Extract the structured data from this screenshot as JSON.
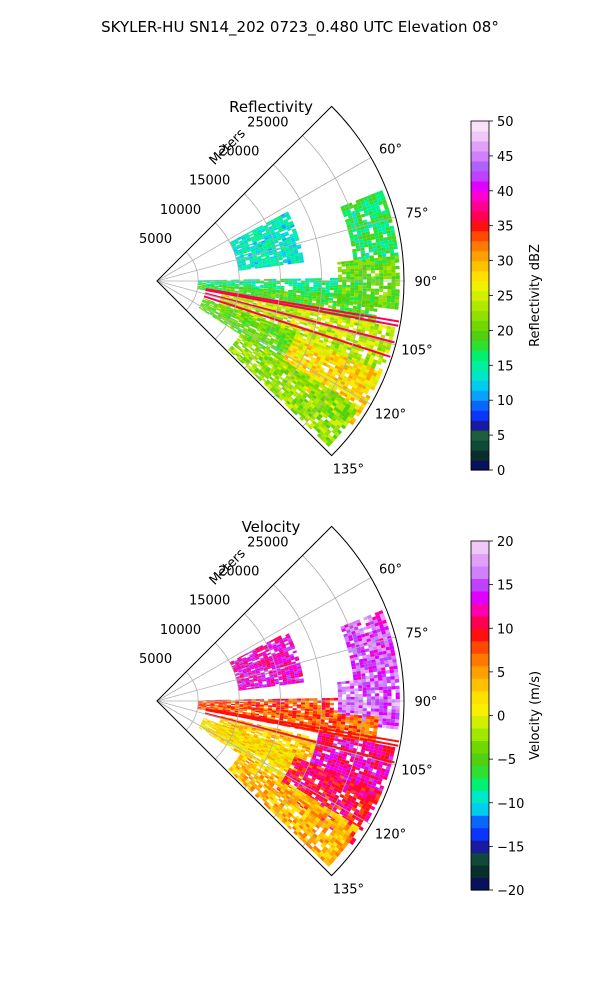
{
  "suptitle": "SKYLER-HU  SN14_202  0723_0.480 UTC Elevation 08°",
  "chart_data": [
    {
      "type": "heatmap",
      "subtype": "polar-sector-ppi",
      "title": "Reflectivity",
      "radial_label": "Meters",
      "radial_ticks": [
        5000,
        10000,
        15000,
        20000,
        25000
      ],
      "radial_tick_labels": [
        "5000",
        "10000",
        "15000",
        "20000",
        "25000"
      ],
      "r_max": 30000,
      "theta_range_deg": [
        45,
        135
      ],
      "theta_ticks": [
        60,
        75,
        90,
        105,
        120,
        135
      ],
      "theta_tick_labels": [
        "60°",
        "75°",
        "90°",
        "105°",
        "120°",
        "135°"
      ],
      "grid": true,
      "colorbar": {
        "label": "Reflectivity dBZ",
        "vmin": 0,
        "vmax": 50,
        "ticks": [
          0,
          5,
          10,
          15,
          20,
          25,
          30,
          35,
          40,
          45,
          50
        ],
        "tick_labels": [
          "0",
          "5",
          "10",
          "15",
          "20",
          "25",
          "30",
          "35",
          "40",
          "45",
          "50"
        ],
        "colors": [
          "#08115a",
          "#0a2f2a",
          "#0f4a38",
          "#1c5f3a",
          "#1a1aa0",
          "#0a35ff",
          "#0a66ff",
          "#0aa0ff",
          "#00ccee",
          "#00e6c8",
          "#00f0a0",
          "#00f070",
          "#30e030",
          "#50d010",
          "#70d800",
          "#90e000",
          "#b0e800",
          "#d0f000",
          "#f0f000",
          "#ffe000",
          "#ffc000",
          "#ffa000",
          "#ff7800",
          "#ff4800",
          "#ff1010",
          "#ff0050",
          "#ff0090",
          "#ff00d0",
          "#e000ff",
          "#c040ff",
          "#b060ff",
          "#d080ff",
          "#e0a0f8",
          "#f0c8f8",
          "#f8e0f8"
        ]
      },
      "echo_regions": [
        {
          "theta": [
            62,
            82
          ],
          "r": [
            10000,
            18000
          ],
          "value": 14
        },
        {
          "theta": [
            68,
            85
          ],
          "r": [
            24000,
            29500
          ],
          "value": 17
        },
        {
          "theta": [
            84,
            96
          ],
          "r": [
            22000,
            29500
          ],
          "value": 20
        },
        {
          "theta": [
            89,
            95
          ],
          "r": [
            5000,
            22000
          ],
          "value": 16
        },
        {
          "theta": [
            94,
            101
          ],
          "r": [
            5000,
            27000
          ],
          "value": 19
        },
        {
          "theta": [
            101,
            115
          ],
          "r": [
            8000,
            29500
          ],
          "value": 24
        },
        {
          "theta": [
            112,
            126
          ],
          "r": [
            18000,
            29500
          ],
          "value": 28
        },
        {
          "theta": [
            110,
            122
          ],
          "r": [
            6000,
            18000
          ],
          "value": 20
        },
        {
          "theta": [
            122,
            134
          ],
          "r": [
            12000,
            29000
          ],
          "value": 22
        }
      ],
      "spike_angles_deg": [
        99.5,
        100.5,
        104.5,
        108.0
      ]
    },
    {
      "type": "heatmap",
      "subtype": "polar-sector-ppi",
      "title": "Velocity",
      "radial_label": "Meters",
      "radial_ticks": [
        5000,
        10000,
        15000,
        20000,
        25000
      ],
      "radial_tick_labels": [
        "5000",
        "10000",
        "15000",
        "20000",
        "25000"
      ],
      "r_max": 30000,
      "theta_range_deg": [
        45,
        135
      ],
      "theta_ticks": [
        60,
        75,
        90,
        105,
        120,
        135
      ],
      "theta_tick_labels": [
        "60°",
        "75°",
        "90°",
        "105°",
        "120°",
        "135°"
      ],
      "grid": true,
      "colorbar": {
        "label": "Velocity (m/s)",
        "vmin": -20,
        "vmax": 20,
        "ticks": [
          -20,
          -15,
          -10,
          -5,
          0,
          5,
          10,
          15,
          20
        ],
        "tick_labels": [
          "−20",
          "−15",
          "−10",
          "−5",
          "0",
          "5",
          "10",
          "15",
          "20"
        ],
        "colors": [
          "#08115a",
          "#0a2f2a",
          "#0f4a38",
          "#1a1aa0",
          "#0a35ff",
          "#0a66ff",
          "#00ccee",
          "#00e6c8",
          "#00f070",
          "#30e030",
          "#50d010",
          "#70d800",
          "#a0e800",
          "#d0f000",
          "#f8f000",
          "#ffe000",
          "#ffc000",
          "#ffa000",
          "#ff7800",
          "#ff4800",
          "#ff1010",
          "#ff0050",
          "#ff00b0",
          "#e000ff",
          "#c040ff",
          "#d080ff",
          "#e0a0f8",
          "#f0c8f8"
        ]
      },
      "echo_regions": [
        {
          "theta": [
            62,
            82
          ],
          "r": [
            10000,
            18000
          ],
          "value": 13
        },
        {
          "theta": [
            68,
            85
          ],
          "r": [
            24000,
            29500
          ],
          "value": 15
        },
        {
          "theta": [
            84,
            96
          ],
          "r": [
            22000,
            29500
          ],
          "value": 16
        },
        {
          "theta": [
            89,
            95
          ],
          "r": [
            5000,
            22000
          ],
          "value": 8
        },
        {
          "theta": [
            94,
            101
          ],
          "r": [
            5000,
            27000
          ],
          "value": 7
        },
        {
          "theta": [
            101,
            115
          ],
          "r": [
            20000,
            29500
          ],
          "value": 12
        },
        {
          "theta": [
            103,
            118
          ],
          "r": [
            8000,
            20000
          ],
          "value": 3
        },
        {
          "theta": [
            112,
            126
          ],
          "r": [
            18000,
            29500
          ],
          "value": 10
        },
        {
          "theta": [
            110,
            122
          ],
          "r": [
            6000,
            18000
          ],
          "value": 2
        },
        {
          "theta": [
            122,
            134
          ],
          "r": [
            12000,
            29000
          ],
          "value": 4
        }
      ],
      "spike_angles_deg": [
        99.5,
        100.5,
        104.5
      ]
    }
  ]
}
